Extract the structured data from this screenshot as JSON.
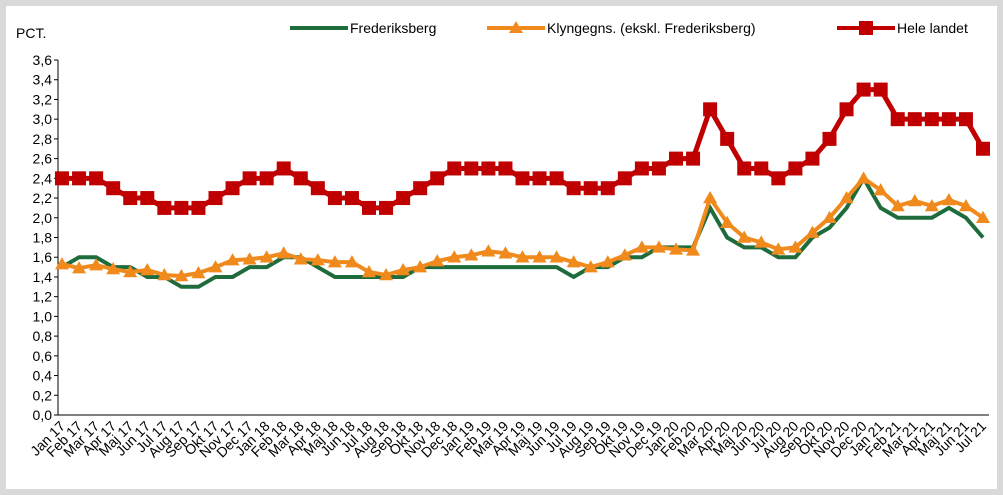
{
  "chart_data": {
    "type": "line",
    "y_label": "PCT.",
    "categories": [
      "Jan 17",
      "Feb 17",
      "Mar 17",
      "Apr 17",
      "Maj 17",
      "Jun 17",
      "Jul 17",
      "Aug 17",
      "Sep 17",
      "Okt 17",
      "Nov 17",
      "Dec 17",
      "Jan 18",
      "Feb 18",
      "Mar 18",
      "Apr 18",
      "Maj 18",
      "Jun 18",
      "Jul 18",
      "Aug 18",
      "Sep 18",
      "Okt 18",
      "Nov 18",
      "Dec 18",
      "Jan 19",
      "Feb 19",
      "Mar 19",
      "Apr 19",
      "Maj 19",
      "Jun 19",
      "Jul 19",
      "Aug 19",
      "Sep 19",
      "Okt 19",
      "Nov 19",
      "Dec 19",
      "Jan 20",
      "Feb 20",
      "Mar 20",
      "Apr 20",
      "Maj 20",
      "Jun 20",
      "Jul 20",
      "Aug 20",
      "Sep 20",
      "Okt 20",
      "Nov 20",
      "Dec 20",
      "Jan 21",
      "Feb 21",
      "Mar 21",
      "Apr 21",
      "Maj 21",
      "Jun 21",
      "Jul 21"
    ],
    "series": [
      {
        "name": "Frederiksberg",
        "color": "#1e6b3c",
        "marker": "none",
        "values": [
          1.5,
          1.6,
          1.6,
          1.5,
          1.5,
          1.4,
          1.4,
          1.3,
          1.3,
          1.4,
          1.4,
          1.5,
          1.5,
          1.6,
          1.6,
          1.5,
          1.4,
          1.4,
          1.4,
          1.4,
          1.4,
          1.5,
          1.5,
          1.5,
          1.5,
          1.5,
          1.5,
          1.5,
          1.5,
          1.5,
          1.4,
          1.5,
          1.5,
          1.6,
          1.6,
          1.7,
          1.7,
          1.7,
          2.1,
          1.8,
          1.7,
          1.7,
          1.6,
          1.6,
          1.8,
          1.9,
          2.1,
          2.4,
          2.1,
          2.0,
          2.0,
          2.0,
          2.1,
          2.0,
          1.8
        ]
      },
      {
        "name": "Klyngegns. (ekskl. Frederiksberg)",
        "color": "#f08a1c",
        "marker": "triangle",
        "values": [
          1.53,
          1.49,
          1.52,
          1.48,
          1.45,
          1.47,
          1.42,
          1.41,
          1.44,
          1.5,
          1.57,
          1.58,
          1.6,
          1.64,
          1.58,
          1.57,
          1.55,
          1.55,
          1.45,
          1.42,
          1.47,
          1.5,
          1.56,
          1.6,
          1.62,
          1.66,
          1.64,
          1.6,
          1.6,
          1.6,
          1.55,
          1.5,
          1.55,
          1.62,
          1.7,
          1.7,
          1.68,
          1.67,
          2.2,
          1.95,
          1.8,
          1.75,
          1.68,
          1.7,
          1.85,
          2.0,
          2.2,
          2.4,
          2.28,
          2.12,
          2.17,
          2.12,
          2.18,
          2.12,
          2.0
        ]
      },
      {
        "name": "Hele landet",
        "color": "#c00000",
        "marker": "square",
        "values": [
          2.4,
          2.4,
          2.4,
          2.3,
          2.2,
          2.2,
          2.1,
          2.1,
          2.1,
          2.2,
          2.3,
          2.4,
          2.4,
          2.5,
          2.4,
          2.3,
          2.2,
          2.2,
          2.1,
          2.1,
          2.2,
          2.3,
          2.4,
          2.5,
          2.5,
          2.5,
          2.5,
          2.4,
          2.4,
          2.4,
          2.3,
          2.3,
          2.3,
          2.4,
          2.5,
          2.5,
          2.6,
          2.6,
          3.1,
          2.8,
          2.5,
          2.5,
          2.4,
          2.5,
          2.6,
          2.8,
          3.1,
          3.3,
          3.3,
          3.0,
          3.0,
          3.0,
          3.0,
          3.0,
          2.7
        ]
      }
    ],
    "ylim": [
      0,
      3.6
    ],
    "yticks": [
      {
        "value": 0,
        "label": "0,0"
      },
      {
        "value": 0.2,
        "label": "0,2"
      },
      {
        "value": 0.4,
        "label": "0,4"
      },
      {
        "value": 0.6,
        "label": "0,6"
      },
      {
        "value": 0.8,
        "label": "0,8"
      },
      {
        "value": 1.0,
        "label": "1,0"
      },
      {
        "value": 1.2,
        "label": "1,2"
      },
      {
        "value": 1.4,
        "label": "1,4"
      },
      {
        "value": 1.6,
        "label": "1,6"
      },
      {
        "value": 1.8,
        "label": "1,8"
      },
      {
        "value": 2.0,
        "label": "2,0"
      },
      {
        "value": 2.2,
        "label": "2,2"
      },
      {
        "value": 2.4,
        "label": "2,4"
      },
      {
        "value": 2.6,
        "label": "2,6"
      },
      {
        "value": 2.8,
        "label": "2,8"
      },
      {
        "value": 3.0,
        "label": "3,0"
      },
      {
        "value": 3.2,
        "label": "3,2"
      },
      {
        "value": 3.4,
        "label": "3,4"
      },
      {
        "value": 3.6,
        "label": "3,6"
      }
    ],
    "grid": false,
    "legend": "top"
  }
}
